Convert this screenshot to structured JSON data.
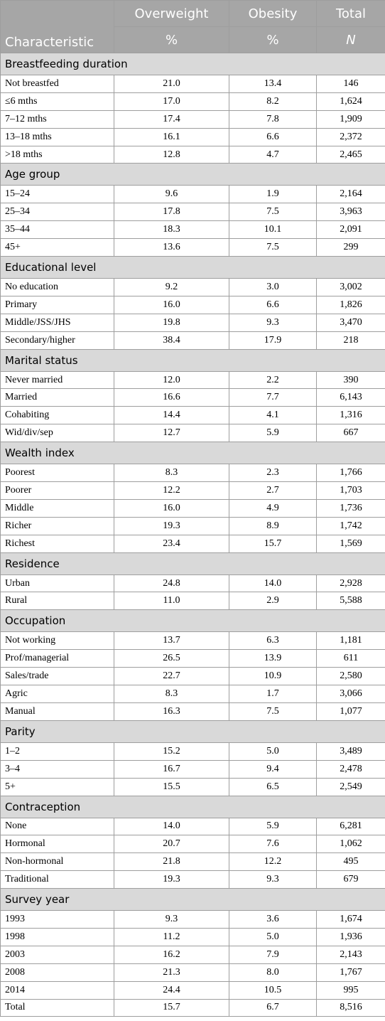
{
  "header": {
    "characteristic": "Characteristic",
    "columns": [
      "Overweight",
      "Obesity",
      "Total"
    ],
    "units": [
      "%",
      "%",
      "N"
    ]
  },
  "sections": [
    {
      "title": "Breastfeeding duration",
      "rows": [
        [
          "Not breastfed",
          "21.0",
          "13.4",
          "146"
        ],
        [
          "≤6 mths",
          "17.0",
          "8.2",
          "1,624"
        ],
        [
          "7–12 mths",
          "17.4",
          "7.8",
          "1,909"
        ],
        [
          "13–18 mths",
          "16.1",
          "6.6",
          "2,372"
        ],
        [
          ">18 mths",
          "12.8",
          "4.7",
          "2,465"
        ]
      ]
    },
    {
      "title": "Age group",
      "rows": [
        [
          "15–24",
          "9.6",
          "1.9",
          "2,164"
        ],
        [
          "25–34",
          "17.8",
          "7.5",
          "3,963"
        ],
        [
          "35–44",
          "18.3",
          "10.1",
          "2,091"
        ],
        [
          "45+",
          "13.6",
          "7.5",
          "299"
        ]
      ]
    },
    {
      "title": "Educational level",
      "rows": [
        [
          "No education",
          "9.2",
          "3.0",
          "3,002"
        ],
        [
          "Primary",
          "16.0",
          "6.6",
          "1,826"
        ],
        [
          "Middle/JSS/JHS",
          "19.8",
          "9.3",
          "3,470"
        ],
        [
          "Secondary/higher",
          "38.4",
          "17.9",
          "218"
        ]
      ]
    },
    {
      "title": "Marital status",
      "rows": [
        [
          "Never married",
          "12.0",
          "2.2",
          "390"
        ],
        [
          "Married",
          "16.6",
          "7.7",
          "6,143"
        ],
        [
          "Cohabiting",
          "14.4",
          "4.1",
          "1,316"
        ],
        [
          "Wid/div/sep",
          "12.7",
          "5.9",
          "667"
        ]
      ]
    },
    {
      "title": "Wealth index",
      "rows": [
        [
          "Poorest",
          "8.3",
          "2.3",
          "1,766"
        ],
        [
          "Poorer",
          "12.2",
          "2.7",
          "1,703"
        ],
        [
          "Middle",
          "16.0",
          "4.9",
          "1,736"
        ],
        [
          "Richer",
          "19.3",
          "8.9",
          "1,742"
        ],
        [
          "Richest",
          "23.4",
          "15.7",
          "1,569"
        ]
      ]
    },
    {
      "title": "Residence",
      "rows": [
        [
          "Urban",
          "24.8",
          "14.0",
          "2,928"
        ],
        [
          "Rural",
          "11.0",
          "2.9",
          "5,588"
        ]
      ]
    },
    {
      "title": "Occupation",
      "rows": [
        [
          "Not working",
          "13.7",
          "6.3",
          "1,181"
        ],
        [
          "Prof/managerial",
          "26.5",
          "13.9",
          "611"
        ],
        [
          "Sales/trade",
          "22.7",
          "10.9",
          "2,580"
        ],
        [
          "Agric",
          "8.3",
          "1.7",
          "3,066"
        ],
        [
          "Manual",
          "16.3",
          "7.5",
          "1,077"
        ]
      ]
    },
    {
      "title": "Parity",
      "rows": [
        [
          "1–2",
          "15.2",
          "5.0",
          "3,489"
        ],
        [
          "3–4",
          "16.7",
          "9.4",
          "2,478"
        ],
        [
          "5+",
          "15.5",
          "6.5",
          "2,549"
        ]
      ]
    },
    {
      "title": "Contraception",
      "rows": [
        [
          "None",
          "14.0",
          "5.9",
          "6,281"
        ],
        [
          "Hormonal",
          "20.7",
          "7.6",
          "1,062"
        ],
        [
          "Non-hormonal",
          "21.8",
          "12.2",
          "495"
        ],
        [
          "Traditional",
          "19.3",
          "9.3",
          "679"
        ]
      ]
    },
    {
      "title": "Survey year",
      "rows": [
        [
          "1993",
          "9.3",
          "3.6",
          "1,674"
        ],
        [
          "1998",
          "11.2",
          "5.0",
          "1,936"
        ],
        [
          "2003",
          "16.2",
          "7.9",
          "2,143"
        ],
        [
          "2008",
          "21.3",
          "8.0",
          "1,767"
        ],
        [
          "2014",
          "24.4",
          "10.5",
          "995"
        ]
      ]
    }
  ],
  "total_row": [
    "Total",
    "15.7",
    "6.7",
    "8,516"
  ]
}
